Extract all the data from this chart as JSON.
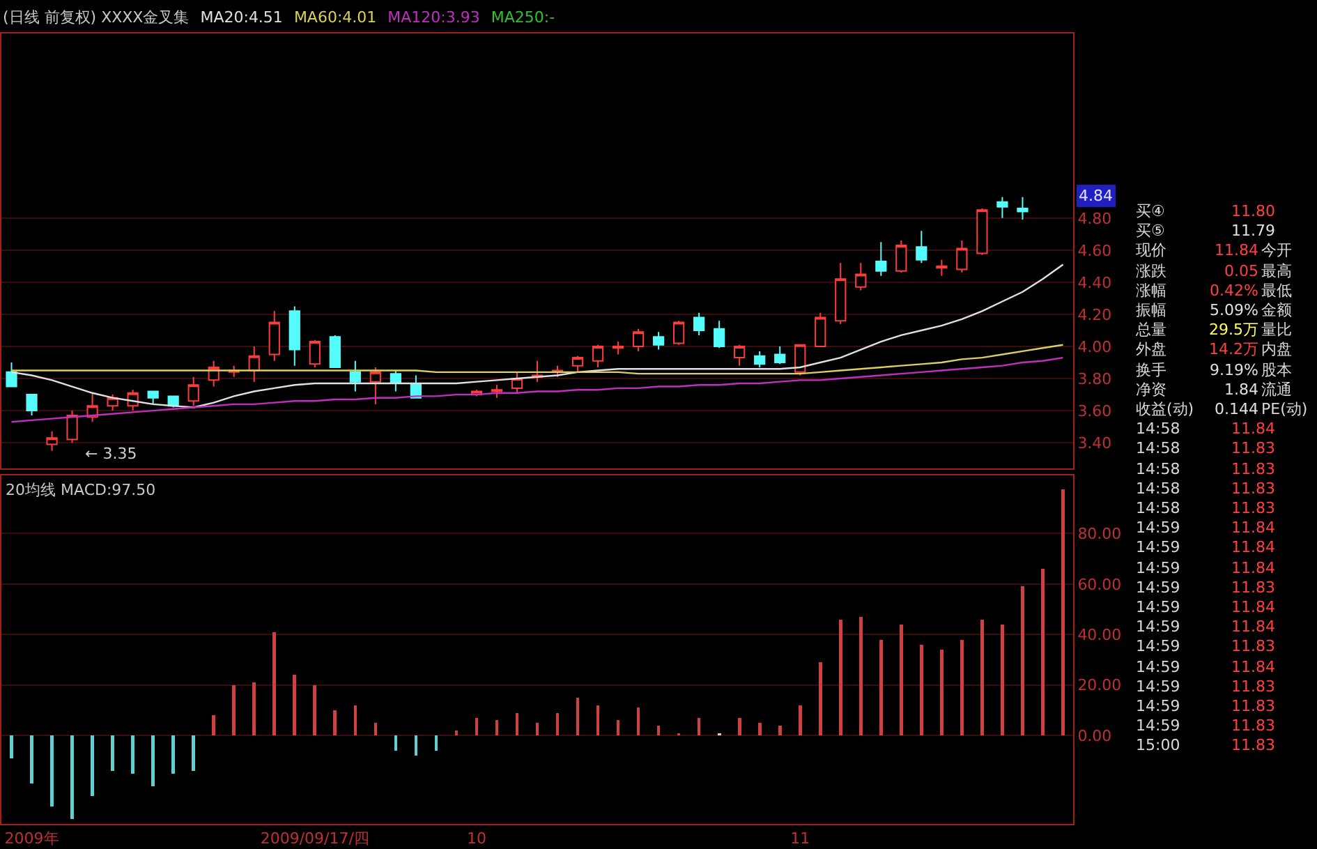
{
  "chart_data": [
    {
      "type": "candlestick",
      "title": "(日线 前复权) XXXX金叉集",
      "legend": "top left",
      "grid": "y",
      "categories": [
        null,
        null,
        null,
        null,
        null,
        null,
        null,
        null,
        null,
        null,
        null,
        null,
        null,
        null,
        null,
        null,
        null,
        null,
        null,
        null,
        null,
        null,
        null,
        null,
        null,
        null,
        null,
        null,
        null,
        null,
        null,
        null,
        null,
        null,
        null,
        null,
        null,
        null,
        null,
        null,
        null,
        null,
        null,
        null,
        null,
        null,
        null,
        null,
        null,
        null,
        null,
        null,
        null
      ],
      "ylim": [
        3.24,
        5.95
      ],
      "yticks": [
        {
          "value": 3.4,
          "label": "3.40"
        },
        {
          "value": 3.6,
          "label": "3.60"
        },
        {
          "value": 3.8,
          "label": "3.80"
        },
        {
          "value": 4.0,
          "label": "4.00"
        },
        {
          "value": 4.2,
          "label": "4.20"
        },
        {
          "value": 4.4,
          "label": "4.40"
        },
        {
          "value": 4.6,
          "label": "4.60"
        },
        {
          "value": 4.8,
          "label": "4.80"
        }
      ],
      "ohlc": [
        [
          3.84,
          3.9,
          3.75,
          3.75
        ],
        [
          3.7,
          3.7,
          3.57,
          3.6
        ],
        [
          3.39,
          3.47,
          3.35,
          3.43
        ],
        [
          3.42,
          3.6,
          3.4,
          3.57
        ],
        [
          3.56,
          3.71,
          3.53,
          3.63
        ],
        [
          3.63,
          3.7,
          3.6,
          3.68
        ],
        [
          3.63,
          3.73,
          3.6,
          3.71
        ],
        [
          3.72,
          3.72,
          3.64,
          3.68
        ],
        [
          3.69,
          3.69,
          3.62,
          3.63
        ],
        [
          3.66,
          3.81,
          3.63,
          3.76
        ],
        [
          3.79,
          3.91,
          3.75,
          3.87
        ],
        [
          3.84,
          3.88,
          3.81,
          3.85
        ],
        [
          3.85,
          4.0,
          3.78,
          3.94
        ],
        [
          3.95,
          4.22,
          3.91,
          4.15
        ],
        [
          4.22,
          4.25,
          3.88,
          3.98
        ],
        [
          3.89,
          4.04,
          3.87,
          4.03
        ],
        [
          4.06,
          4.07,
          3.87,
          3.87
        ],
        [
          3.84,
          3.91,
          3.72,
          3.78
        ],
        [
          3.78,
          3.87,
          3.64,
          3.84
        ],
        [
          3.83,
          3.85,
          3.72,
          3.77
        ],
        [
          3.77,
          3.82,
          3.68,
          3.68
        ],
        null,
        null,
        [
          3.7,
          3.73,
          3.69,
          3.72
        ],
        [
          3.72,
          3.76,
          3.68,
          3.73
        ],
        [
          3.74,
          3.84,
          3.71,
          3.8
        ],
        [
          3.81,
          3.91,
          3.78,
          3.82
        ],
        [
          3.84,
          3.88,
          3.81,
          3.85
        ],
        [
          3.88,
          3.94,
          3.84,
          3.93
        ],
        [
          3.91,
          4.01,
          3.87,
          4.0
        ],
        [
          3.99,
          4.03,
          3.95,
          4.0
        ],
        [
          4.0,
          4.11,
          3.97,
          4.09
        ],
        [
          4.06,
          4.09,
          3.98,
          4.01
        ],
        [
          4.02,
          4.16,
          4.01,
          4.15
        ],
        [
          4.18,
          4.21,
          4.07,
          4.1
        ],
        [
          4.11,
          4.16,
          3.99,
          4.0
        ],
        [
          3.93,
          4.01,
          3.88,
          4.0
        ],
        [
          3.94,
          3.97,
          3.87,
          3.89
        ],
        [
          3.95,
          4.0,
          3.89,
          3.9
        ],
        [
          3.84,
          4.01,
          3.82,
          4.01
        ],
        [
          4.0,
          4.21,
          4.0,
          4.18
        ],
        [
          4.16,
          4.52,
          4.14,
          4.42
        ],
        [
          4.37,
          4.52,
          4.35,
          4.45
        ],
        [
          4.53,
          4.65,
          4.44,
          4.47
        ],
        [
          4.47,
          4.66,
          4.46,
          4.63
        ],
        [
          4.62,
          4.72,
          4.52,
          4.54
        ],
        [
          4.49,
          4.54,
          4.44,
          4.5
        ],
        [
          4.48,
          4.66,
          4.46,
          4.61
        ],
        [
          4.58,
          4.86,
          4.57,
          4.85
        ],
        [
          4.9,
          4.93,
          4.8,
          4.87
        ],
        [
          4.86,
          4.93,
          4.79,
          4.84
        ],
        null,
        null
      ],
      "series": [
        {
          "name": "MA20:4.51",
          "type": "line",
          "color": "#e0e0e0",
          "values": [
            3.84,
            3.82,
            3.79,
            3.75,
            3.71,
            3.68,
            3.66,
            3.64,
            3.63,
            3.62,
            3.65,
            3.69,
            3.72,
            3.74,
            3.76,
            3.77,
            3.77,
            3.77,
            3.77,
            3.77,
            3.77,
            3.77,
            3.77,
            3.78,
            3.79,
            3.8,
            3.81,
            3.82,
            3.84,
            3.85,
            3.86,
            3.86,
            3.86,
            3.86,
            3.86,
            3.86,
            3.86,
            3.86,
            3.86,
            3.87,
            3.9,
            3.93,
            3.98,
            4.03,
            4.07,
            4.1,
            4.13,
            4.17,
            4.22,
            4.28,
            4.34,
            4.42,
            4.51
          ]
        },
        {
          "name": "MA60:4.01",
          "type": "line",
          "color": "#d8d060",
          "values": [
            3.85,
            3.85,
            3.85,
            3.85,
            3.85,
            3.85,
            3.85,
            3.85,
            3.85,
            3.85,
            3.85,
            3.85,
            3.85,
            3.85,
            3.85,
            3.85,
            3.85,
            3.85,
            3.85,
            3.85,
            3.85,
            3.84,
            3.84,
            3.84,
            3.84,
            3.84,
            3.84,
            3.84,
            3.84,
            3.84,
            3.84,
            3.83,
            3.83,
            3.83,
            3.83,
            3.83,
            3.83,
            3.83,
            3.83,
            3.83,
            3.84,
            3.85,
            3.86,
            3.87,
            3.88,
            3.89,
            3.9,
            3.92,
            3.93,
            3.95,
            3.97,
            3.99,
            4.01
          ]
        },
        {
          "name": "MA120:3.93",
          "type": "line",
          "color": "#c030c0",
          "values": [
            3.53,
            3.54,
            3.55,
            3.56,
            3.57,
            3.58,
            3.59,
            3.6,
            3.61,
            3.62,
            3.63,
            3.64,
            3.64,
            3.65,
            3.66,
            3.66,
            3.67,
            3.67,
            3.68,
            3.68,
            3.69,
            3.69,
            3.7,
            3.7,
            3.71,
            3.71,
            3.72,
            3.72,
            3.73,
            3.73,
            3.74,
            3.74,
            3.75,
            3.75,
            3.76,
            3.76,
            3.77,
            3.77,
            3.78,
            3.79,
            3.79,
            3.8,
            3.81,
            3.82,
            3.83,
            3.84,
            3.85,
            3.86,
            3.87,
            3.88,
            3.9,
            3.91,
            3.93
          ]
        }
      ],
      "annotations": [
        "MA250:-",
        "← 3.35",
        "4.84"
      ]
    },
    {
      "type": "bar",
      "title": "20均线 MACD:97.50",
      "grid": "y",
      "categories": [
        null,
        "2009年",
        null,
        null,
        null,
        null,
        null,
        null,
        null,
        null,
        null,
        null,
        null,
        null,
        null,
        "2009/09/17/四",
        null,
        null,
        null,
        null,
        null,
        null,
        null,
        "10",
        null,
        null,
        null,
        null,
        null,
        null,
        null,
        null,
        null,
        null,
        null,
        null,
        null,
        null,
        null,
        "11",
        null,
        null,
        null,
        null,
        null,
        null,
        null,
        null,
        null,
        null,
        null,
        null,
        null
      ],
      "ylim": [
        -35,
        103
      ],
      "yticks": [
        {
          "value": 0,
          "label": "0.00"
        },
        {
          "value": 20,
          "label": "20.00"
        },
        {
          "value": 40,
          "label": "40.00"
        },
        {
          "value": 60,
          "label": "60.00"
        },
        {
          "value": 80,
          "label": "80.00"
        }
      ],
      "values": [
        -9,
        -19,
        -28,
        -33,
        -24,
        -14,
        -15,
        -20,
        -15,
        -14,
        8,
        20,
        21,
        41,
        24,
        20,
        10,
        12,
        5,
        -6,
        -8,
        -6,
        2,
        7,
        6,
        9,
        5,
        9,
        15,
        12,
        6,
        11,
        4,
        1,
        7,
        1,
        7,
        5,
        4,
        12,
        29,
        46,
        47,
        38,
        44,
        36,
        34,
        38,
        46,
        44,
        59,
        66,
        97.5
      ],
      "colors": [
        "#5fd0d0",
        "#5fd0d0",
        "#5fd0d0",
        "#5fd0d0",
        "#5fd0d0",
        "#5fd0d0",
        "#5fd0d0",
        "#5fd0d0",
        "#5fd0d0",
        "#5fd0d0",
        "#d04040",
        "#d04040",
        "#d04040",
        "#d04040",
        "#d04040",
        "#d04040",
        "#d04040",
        "#d04040",
        "#d04040",
        "#5fd0d0",
        "#5fd0d0",
        "#5fd0d0",
        "#d04040",
        "#d04040",
        "#d04040",
        "#d04040",
        "#d04040",
        "#d04040",
        "#d04040",
        "#d04040",
        "#d04040",
        "#d04040",
        "#d04040",
        "#d04040",
        "#d04040",
        "#d0d0d0",
        "#d04040",
        "#d04040",
        "#d04040",
        "#d04040",
        "#d04040",
        "#d04040",
        "#d04040",
        "#d04040",
        "#d04040",
        "#d04040",
        "#d04040",
        "#d04040",
        "#d04040",
        "#d04040",
        "#d04040",
        "#d04040",
        "#d04040"
      ]
    },
    {
      "type": "other",
      "annotations": [
        "买④ 11.80",
        "买⑤ 11.79",
        "现价 11.84 今开",
        "涨跌 0.05 最高",
        "涨幅 0.42% 最低",
        "振幅 5.09% 金额",
        "总量 29.5万 量比",
        "外盘 14.2万 内盘",
        "换手 9.19% 股本",
        "净资 1.84 流通",
        "收益(动) 0.144 PE(动)",
        "14:58 11.84",
        "14:58 11.83",
        "14:58 11.83",
        "14:58 11.83",
        "14:58 11.83",
        "14:59 11.84",
        "14:59 11.84",
        "14:59 11.84",
        "14:59 11.83",
        "14:59 11.84",
        "14:59 11.84",
        "14:59 11.83",
        "14:59 11.84",
        "14:59 11.83",
        "14:59 11.83",
        "14:59 11.83",
        "15:00 11.83"
      ]
    }
  ]
}
